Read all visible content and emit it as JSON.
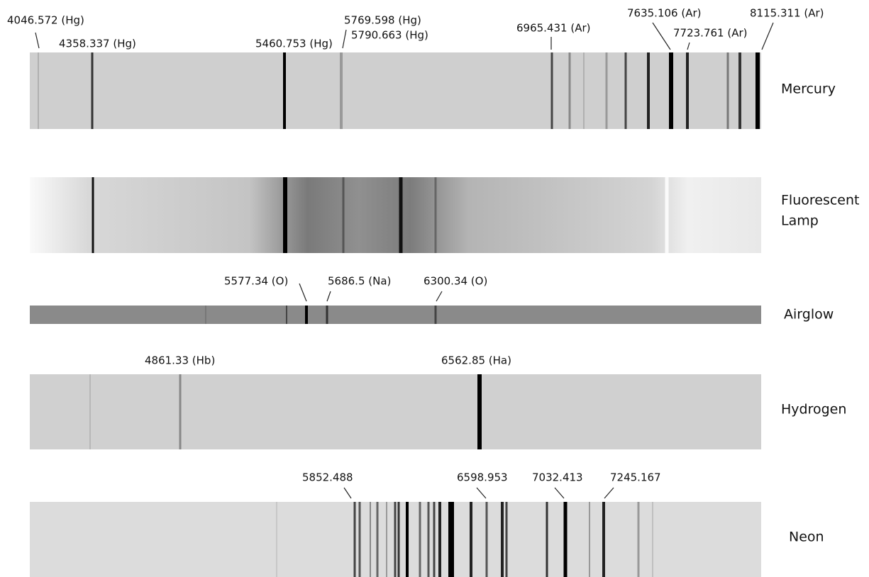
{
  "spectra": [
    {
      "name": [
        "Mercury"
      ],
      "lines": [
        "4046.572 (Hg)",
        "4358.337 (Hg)",
        "5460.753 (Hg)",
        "5769.598 (Hg)",
        "5790.663 (Hg)",
        "6965.431 (Ar)",
        "7635.106 (Ar)",
        "7723.761 (Ar)",
        "8115.311 (Ar)"
      ]
    },
    {
      "name": [
        "Fluorescent",
        "Lamp"
      ],
      "lines": []
    },
    {
      "name": [
        "Airglow"
      ],
      "lines": [
        "5577.34 (O)",
        "5686.5 (Na)",
        "6300.34 (O)"
      ]
    },
    {
      "name": [
        "Hydrogen"
      ],
      "lines": [
        "4861.33 (Hb)",
        "6562.85 (Ha)"
      ]
    },
    {
      "name": [
        "Neon"
      ],
      "lines": [
        "5852.488",
        "6598.953",
        "7032.413",
        "7245.167"
      ]
    }
  ]
}
